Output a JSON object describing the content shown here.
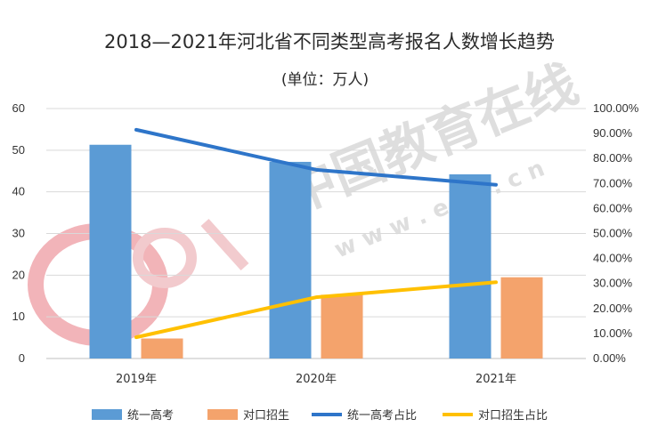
{
  "chart_data": {
    "type": "bar",
    "title": "2018—2021年河北省不同类型高考报名人数增长趋势",
    "subtitle": "(单位：万人)",
    "categories": [
      "2019年",
      "2020年",
      "2021年"
    ],
    "series": [
      {
        "name": "统一高考",
        "type": "bar",
        "axis": "left",
        "color": "#5b9bd5",
        "values": [
          51.3,
          47.2,
          44.2
        ]
      },
      {
        "name": "对口招生",
        "type": "bar",
        "axis": "left",
        "color": "#f4a36c",
        "values": [
          4.8,
          15.3,
          19.5
        ]
      },
      {
        "name": "统一高考占比",
        "type": "line",
        "axis": "right",
        "color": "#2e75c9",
        "values": [
          0.915,
          0.755,
          0.695
        ]
      },
      {
        "name": "对口招生占比",
        "type": "line",
        "axis": "right",
        "color": "#ffc000",
        "values": [
          0.085,
          0.245,
          0.305
        ]
      }
    ],
    "y_left": {
      "range": [
        0,
        60
      ],
      "ticks": [
        "0",
        "10",
        "20",
        "30",
        "40",
        "50",
        "60"
      ]
    },
    "y_right": {
      "range": [
        0,
        1
      ],
      "ticks": [
        "0.00%",
        "10.00%",
        "20.00%",
        "30.00%",
        "40.00%",
        "50.00%",
        "60.00%",
        "70.00%",
        "80.00%",
        "90.00%",
        "100.00%"
      ]
    },
    "grid": "horizontal",
    "legend": "bottom"
  },
  "watermark": {
    "text": "中国教育在线",
    "url_text": "w w w . e o l . c n",
    "logo_text": "eol"
  }
}
